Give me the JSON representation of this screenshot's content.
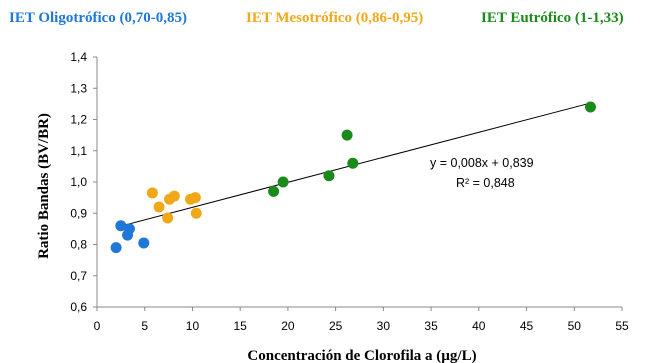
{
  "chart_data": {
    "type": "scatter",
    "title": "",
    "xlabel": "Concentración de Clorofila a (µg/L)",
    "ylabel": "Ratio Bandas (BV/BR)",
    "xlim": [
      0,
      55
    ],
    "ylim": [
      0.6,
      1.4
    ],
    "x_ticks": [
      0,
      5,
      10,
      15,
      20,
      25,
      30,
      35,
      40,
      45,
      50,
      55
    ],
    "y_ticks": [
      "0,6",
      "0,7",
      "0,8",
      "0,9",
      "1,0",
      "1,1",
      "1,2",
      "1,3",
      "1,4"
    ],
    "grid": false,
    "legend_position": "top",
    "series": [
      {
        "name": "IET Oligotrófico (0,70-0,85)",
        "color": "#1f78d8",
        "points": [
          [
            2.0,
            0.79
          ],
          [
            2.5,
            0.86
          ],
          [
            3.2,
            0.83
          ],
          [
            3.4,
            0.85
          ],
          [
            4.9,
            0.805
          ]
        ]
      },
      {
        "name": "IET Mesotrófico (0,86-0,95)",
        "color": "#f0a818",
        "points": [
          [
            5.8,
            0.965
          ],
          [
            6.5,
            0.92
          ],
          [
            7.4,
            0.885
          ],
          [
            7.6,
            0.945
          ],
          [
            8.1,
            0.955
          ],
          [
            9.8,
            0.945
          ],
          [
            10.3,
            0.95
          ],
          [
            10.4,
            0.9
          ]
        ]
      },
      {
        "name": "IET Eutrófico (1-1,33)",
        "color": "#1a8a1a",
        "points": [
          [
            18.5,
            0.97
          ],
          [
            19.5,
            1.0
          ],
          [
            24.3,
            1.02
          ],
          [
            26.2,
            1.15
          ],
          [
            26.8,
            1.06
          ],
          [
            51.7,
            1.24
          ]
        ]
      }
    ],
    "trendline": {
      "slope": 0.008,
      "intercept": 0.839,
      "x_range": [
        2.0,
        51.7
      ],
      "equation_label": "y = 0,008x + 0,839",
      "r2_label": "R² = 0,848"
    }
  }
}
